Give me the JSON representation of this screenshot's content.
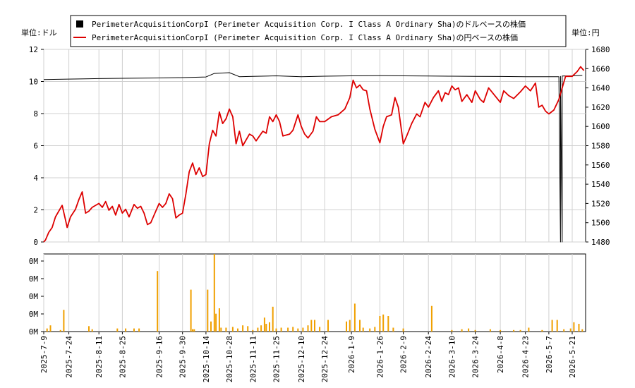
{
  "chart_data": [
    {
      "type": "line",
      "panel": "price",
      "left_axis_unit": "単位:ドル",
      "right_axis_unit": "単位:円",
      "legend_position": "top",
      "legend": [
        {
          "label": "PerimeterAcquisitionCorpI (Perimeter Acquisition Corp. I Class A Ordinary Sha)のドルベースの株価",
          "color": "#000000",
          "marker": "square"
        },
        {
          "label": "PerimeterAcquisitionCorpI (Perimeter Acquisition Corp. I Class A Ordinary Sha)の円ベースの株価",
          "color": "#dd0000",
          "marker": "line"
        }
      ],
      "x_dates": [
        "2025-7-9",
        "2025-7-24",
        "2025-8-11",
        "2025-8-25",
        "2025-9-16",
        "2025-9-30",
        "2025-10-14",
        "2025-10-28",
        "2025-11-11",
        "2025-11-25",
        "2025-12-10",
        "2025-12-24",
        "2026-1-9",
        "2026-1-26",
        "2026-2-9",
        "2026-2-24",
        "2026-3-10",
        "2026-3-24",
        "2026-4-8",
        "2026-4-23",
        "2026-5-7",
        "2026-5-21"
      ],
      "left_ylim": [
        0,
        12
      ],
      "left_ticks": [
        "0",
        "2",
        "4",
        "6",
        "8",
        "10",
        "12"
      ],
      "right_ylim": [
        1480,
        1680
      ],
      "right_ticks": [
        "1480",
        "1500",
        "1520",
        "1540",
        "1560",
        "1580",
        "1600",
        "1620",
        "1640",
        "1660",
        "1680"
      ],
      "grid": true,
      "series": [
        {
          "name": "ドルベースの株価",
          "axis": "left",
          "color": "#000000",
          "points": [
            [
              "2025-7-9",
              10.12
            ],
            [
              "2025-7-24",
              10.15
            ],
            [
              "2025-8-11",
              10.18
            ],
            [
              "2025-8-25",
              10.2
            ],
            [
              "2025-9-16",
              10.22
            ],
            [
              "2025-9-30",
              10.24
            ],
            [
              "2025-10-14",
              10.28
            ],
            [
              "2025-10-19",
              10.5
            ],
            [
              "2025-10-28",
              10.55
            ],
            [
              "2025-11-3",
              10.3
            ],
            [
              "2025-11-11",
              10.32
            ],
            [
              "2025-11-25",
              10.35
            ],
            [
              "2025-12-10",
              10.3
            ],
            [
              "2025-12-24",
              10.33
            ],
            [
              "2026-1-9",
              10.35
            ],
            [
              "2026-1-26",
              10.36
            ],
            [
              "2026-2-9",
              10.35
            ],
            [
              "2026-2-24",
              10.34
            ],
            [
              "2026-3-10",
              10.33
            ],
            [
              "2026-3-24",
              10.32
            ],
            [
              "2026-4-8",
              10.31
            ],
            [
              "2026-4-23",
              10.3
            ],
            [
              "2026-5-7",
              10.3
            ],
            [
              "2026-5-13",
              10.3
            ],
            [
              "2026-5-14",
              0
            ],
            [
              "2026-5-14",
              10.32
            ],
            [
              "2026-5-15",
              0
            ],
            [
              "2026-5-15",
              10.34
            ],
            [
              "2026-5-21",
              10.35
            ],
            [
              "2026-5-27",
              10.38
            ]
          ]
        },
        {
          "name": "円ベースの株価",
          "axis": "right",
          "color": "#dd0000",
          "points": [
            [
              "2025-7-9",
              1480
            ],
            [
              "2025-7-10",
              1482
            ],
            [
              "2025-7-12",
              1490
            ],
            [
              "2025-7-14",
              1495
            ],
            [
              "2025-7-16",
              1506
            ],
            [
              "2025-7-18",
              1512
            ],
            [
              "2025-7-20",
              1518
            ],
            [
              "2025-7-22",
              1503
            ],
            [
              "2025-7-23",
              1495
            ],
            [
              "2025-7-25",
              1506
            ],
            [
              "2025-7-28",
              1514
            ],
            [
              "2025-7-30",
              1524
            ],
            [
              "2025-8-1",
              1532
            ],
            [
              "2025-8-3",
              1510
            ],
            [
              "2025-8-5",
              1512
            ],
            [
              "2025-8-7",
              1516
            ],
            [
              "2025-8-11",
              1520
            ],
            [
              "2025-8-13",
              1516
            ],
            [
              "2025-8-15",
              1522
            ],
            [
              "2025-8-17",
              1513
            ],
            [
              "2025-8-19",
              1517
            ],
            [
              "2025-8-21",
              1508
            ],
            [
              "2025-8-23",
              1519
            ],
            [
              "2025-8-25",
              1510
            ],
            [
              "2025-8-27",
              1514
            ],
            [
              "2025-8-29",
              1506
            ],
            [
              "2025-9-1",
              1519
            ],
            [
              "2025-9-3",
              1515
            ],
            [
              "2025-9-5",
              1517
            ],
            [
              "2025-9-7",
              1510
            ],
            [
              "2025-9-9",
              1498
            ],
            [
              "2025-9-11",
              1500
            ],
            [
              "2025-9-14",
              1512
            ],
            [
              "2025-9-16",
              1520
            ],
            [
              "2025-9-18",
              1516
            ],
            [
              "2025-9-20",
              1520
            ],
            [
              "2025-9-22",
              1530
            ],
            [
              "2025-9-24",
              1525
            ],
            [
              "2025-9-26",
              1505
            ],
            [
              "2025-9-28",
              1508
            ],
            [
              "2025-9-30",
              1510
            ],
            [
              "2025-10-2",
              1530
            ],
            [
              "2025-10-4",
              1553
            ],
            [
              "2025-10-6",
              1562
            ],
            [
              "2025-10-8",
              1550
            ],
            [
              "2025-10-10",
              1557
            ],
            [
              "2025-10-12",
              1548
            ],
            [
              "2025-10-14",
              1550
            ],
            [
              "2025-10-16",
              1582
            ],
            [
              "2025-10-18",
              1596
            ],
            [
              "2025-10-20",
              1590
            ],
            [
              "2025-10-22",
              1615
            ],
            [
              "2025-10-24",
              1603
            ],
            [
              "2025-10-26",
              1608
            ],
            [
              "2025-10-28",
              1618
            ],
            [
              "2025-10-30",
              1610
            ],
            [
              "2025-11-1",
              1582
            ],
            [
              "2025-11-3",
              1595
            ],
            [
              "2025-11-5",
              1580
            ],
            [
              "2025-11-9",
              1592
            ],
            [
              "2025-11-11",
              1590
            ],
            [
              "2025-11-13",
              1585
            ],
            [
              "2025-11-17",
              1595
            ],
            [
              "2025-11-19",
              1593
            ],
            [
              "2025-11-21",
              1610
            ],
            [
              "2025-11-23",
              1605
            ],
            [
              "2025-11-25",
              1612
            ],
            [
              "2025-11-27",
              1605
            ],
            [
              "2025-11-29",
              1590
            ],
            [
              "2025-12-3",
              1592
            ],
            [
              "2025-12-5",
              1596
            ],
            [
              "2025-12-8",
              1612
            ],
            [
              "2025-12-10",
              1600
            ],
            [
              "2025-12-12",
              1592
            ],
            [
              "2025-12-14",
              1588
            ],
            [
              "2025-12-17",
              1595
            ],
            [
              "2025-12-19",
              1610
            ],
            [
              "2025-12-21",
              1605
            ],
            [
              "2025-12-24",
              1605
            ],
            [
              "2025-12-28",
              1610
            ],
            [
              "2026-1-1",
              1612
            ],
            [
              "2026-1-5",
              1618
            ],
            [
              "2026-1-8",
              1630
            ],
            [
              "2026-1-10",
              1648
            ],
            [
              "2026-1-12",
              1640
            ],
            [
              "2026-1-14",
              1643
            ],
            [
              "2026-1-16",
              1638
            ],
            [
              "2026-1-18",
              1637
            ],
            [
              "2026-1-20",
              1618
            ],
            [
              "2026-1-23",
              1597
            ],
            [
              "2026-1-26",
              1583
            ],
            [
              "2026-1-28",
              1600
            ],
            [
              "2026-1-30",
              1610
            ],
            [
              "2026-2-2",
              1612
            ],
            [
              "2026-2-4",
              1630
            ],
            [
              "2026-2-6",
              1620
            ],
            [
              "2026-2-9",
              1582
            ],
            [
              "2026-2-11",
              1590
            ],
            [
              "2026-2-14",
              1603
            ],
            [
              "2026-2-17",
              1613
            ],
            [
              "2026-2-19",
              1610
            ],
            [
              "2026-2-22",
              1625
            ],
            [
              "2026-2-24",
              1620
            ],
            [
              "2026-2-27",
              1630
            ],
            [
              "2026-3-2",
              1637
            ],
            [
              "2026-3-4",
              1626
            ],
            [
              "2026-3-6",
              1635
            ],
            [
              "2026-3-8",
              1633
            ],
            [
              "2026-3-10",
              1642
            ],
            [
              "2026-3-12",
              1638
            ],
            [
              "2026-3-14",
              1640
            ],
            [
              "2026-3-16",
              1626
            ],
            [
              "2026-3-19",
              1633
            ],
            [
              "2026-3-22",
              1625
            ],
            [
              "2026-3-24",
              1637
            ],
            [
              "2026-3-27",
              1628
            ],
            [
              "2026-3-29",
              1625
            ],
            [
              "2026-4-1",
              1640
            ],
            [
              "2026-4-8",
              1625
            ],
            [
              "2026-4-10",
              1637
            ],
            [
              "2026-4-13",
              1632
            ],
            [
              "2026-4-16",
              1629
            ],
            [
              "2026-4-20",
              1636
            ],
            [
              "2026-4-23",
              1642
            ],
            [
              "2026-4-26",
              1637
            ],
            [
              "2026-4-29",
              1645
            ],
            [
              "2026-5-1",
              1620
            ],
            [
              "2026-5-3",
              1622
            ],
            [
              "2026-5-5",
              1616
            ],
            [
              "2026-5-7",
              1613
            ],
            [
              "2026-5-10",
              1617
            ],
            [
              "2026-5-13",
              1628
            ],
            [
              "2026-5-15",
              1640
            ],
            [
              "2026-5-17",
              1652
            ],
            [
              "2026-5-21",
              1652
            ],
            [
              "2026-5-24",
              1657
            ],
            [
              "2026-5-26",
              1662
            ],
            [
              "2026-5-28",
              1658
            ]
          ]
        }
      ]
    },
    {
      "type": "bar",
      "panel": "volume",
      "y_tick_labels": [
        "0M",
        "0M",
        "0M",
        "0M",
        "0M"
      ],
      "ylim": [
        0,
        100
      ],
      "color": "#f0a000",
      "x_dates": [
        "2025-7-9",
        "2025-7-24",
        "2025-8-11",
        "2025-8-25",
        "2025-9-16",
        "2025-9-30",
        "2025-10-14",
        "2025-10-28",
        "2025-11-11",
        "2025-11-25",
        "2025-12-10",
        "2025-12-24",
        "2026-1-9",
        "2026-1-26",
        "2026-2-9",
        "2026-2-24",
        "2026-3-10",
        "2026-3-24",
        "2026-4-8",
        "2026-4-23",
        "2026-5-7",
        "2026-5-21"
      ],
      "bars": [
        [
          "2025-7-11",
          4
        ],
        [
          "2025-7-13",
          8
        ],
        [
          "2025-7-19",
          2
        ],
        [
          "2025-7-21",
          28
        ],
        [
          "2025-8-5",
          7
        ],
        [
          "2025-8-7",
          3
        ],
        [
          "2025-8-22",
          4
        ],
        [
          "2025-8-27",
          4
        ],
        [
          "2025-9-1",
          4
        ],
        [
          "2025-9-4",
          4
        ],
        [
          "2025-9-15",
          78
        ],
        [
          "2025-10-5",
          54
        ],
        [
          "2025-10-6",
          3
        ],
        [
          "2025-10-7",
          3
        ],
        [
          "2025-10-15",
          54
        ],
        [
          "2025-10-17",
          13
        ],
        [
          "2025-10-19",
          100
        ],
        [
          "2025-10-20",
          23
        ],
        [
          "2025-10-22",
          30
        ],
        [
          "2025-10-23",
          5
        ],
        [
          "2025-10-26",
          5
        ],
        [
          "2025-10-30",
          6
        ],
        [
          "2025-11-2",
          4
        ],
        [
          "2025-11-5",
          8
        ],
        [
          "2025-11-8",
          7
        ],
        [
          "2025-11-11",
          2
        ],
        [
          "2025-11-14",
          5
        ],
        [
          "2025-11-16",
          8
        ],
        [
          "2025-11-18",
          18
        ],
        [
          "2025-11-19",
          10
        ],
        [
          "2025-11-21",
          12
        ],
        [
          "2025-11-23",
          32
        ],
        [
          "2025-11-25",
          4
        ],
        [
          "2025-11-28",
          5
        ],
        [
          "2025-12-2",
          5
        ],
        [
          "2025-12-5",
          6
        ],
        [
          "2025-12-8",
          4
        ],
        [
          "2025-12-11",
          5
        ],
        [
          "2025-12-14",
          8
        ],
        [
          "2025-12-16",
          15
        ],
        [
          "2025-12-18",
          15
        ],
        [
          "2025-12-21",
          6
        ],
        [
          "2025-12-26",
          15
        ],
        [
          "2026-1-6",
          13
        ],
        [
          "2026-1-8",
          15
        ],
        [
          "2026-1-11",
          36
        ],
        [
          "2026-1-14",
          15
        ],
        [
          "2026-1-16",
          5
        ],
        [
          "2026-1-20",
          4
        ],
        [
          "2026-1-23",
          6
        ],
        [
          "2026-1-26",
          20
        ],
        [
          "2026-1-28",
          22
        ],
        [
          "2026-1-31",
          20
        ],
        [
          "2026-2-3",
          5
        ],
        [
          "2026-2-9",
          4
        ],
        [
          "2026-2-26",
          33
        ],
        [
          "2026-3-10",
          2
        ],
        [
          "2026-3-16",
          3
        ],
        [
          "2026-3-20",
          4
        ],
        [
          "2026-3-24",
          2
        ],
        [
          "2026-4-2",
          3
        ],
        [
          "2026-4-8",
          2
        ],
        [
          "2026-4-16",
          2
        ],
        [
          "2026-4-20",
          2
        ],
        [
          "2026-4-25",
          5
        ],
        [
          "2026-5-3",
          2
        ],
        [
          "2026-5-9",
          15
        ],
        [
          "2026-5-12",
          15
        ],
        [
          "2026-5-16",
          3
        ],
        [
          "2026-5-20",
          4
        ],
        [
          "2026-5-22",
          12
        ],
        [
          "2026-5-25",
          10
        ],
        [
          "2026-5-27",
          3
        ]
      ]
    }
  ]
}
